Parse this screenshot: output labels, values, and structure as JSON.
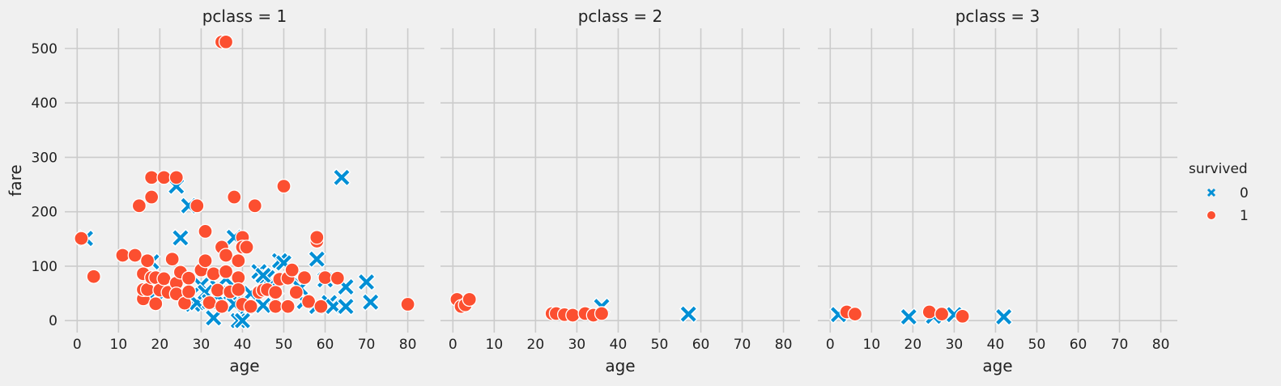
{
  "chart_data": {
    "type": "scatter",
    "xlabel": "age",
    "ylabel": "fare",
    "xlim": [
      -3,
      84
    ],
    "ylim": [
      -22,
      537
    ],
    "xticks": [
      0,
      10,
      20,
      30,
      40,
      50,
      60,
      70,
      80
    ],
    "yticks": [
      0,
      100,
      200,
      300,
      400,
      500
    ],
    "grid": true,
    "legend": {
      "title": "survived",
      "placement": "right",
      "entries": [
        {
          "label": "0",
          "marker": "x",
          "color": "#008fd5"
        },
        {
          "label": "1",
          "marker": "circle",
          "color": "#fc4f30"
        }
      ]
    },
    "panels": [
      {
        "title": "pclass = 1",
        "series": [
          {
            "label": "0",
            "points": [
              [
                2,
                151
              ],
              [
                18,
                108
              ],
              [
                19,
                53
              ],
              [
                24,
                247
              ],
              [
                25,
                152
              ],
              [
                27,
                211
              ],
              [
                28,
                30
              ],
              [
                29,
                33
              ],
              [
                30,
                65
              ],
              [
                31,
                52
              ],
              [
                32,
                35
              ],
              [
                33,
                5
              ],
              [
                34,
                61
              ],
              [
                36,
                77
              ],
              [
                37,
                50
              ],
              [
                38,
                153
              ],
              [
                39,
                0
              ],
              [
                40,
                0
              ],
              [
                41,
                26
              ],
              [
                42,
                50
              ],
              [
                44,
                90
              ],
              [
                45,
                28
              ],
              [
                46,
                79
              ],
              [
                47,
                60
              ],
              [
                49,
                110
              ],
              [
                50,
                106
              ],
              [
                52,
                80
              ],
              [
                54,
                60
              ],
              [
                55,
                35
              ],
              [
                58,
                113
              ],
              [
                58,
                26
              ],
              [
                60,
                75
              ],
              [
                61,
                33
              ],
              [
                62,
                26
              ],
              [
                64,
                263
              ],
              [
                65,
                26
              ],
              [
                65,
                62
              ],
              [
                70,
                71
              ],
              [
                71,
                34
              ],
              [
                45,
                83
              ],
              [
                34,
                45
              ],
              [
                38,
                30
              ],
              [
                48,
                40
              ]
            ]
          },
          {
            "label": "1",
            "points": [
              [
                1,
                151
              ],
              [
                4,
                81
              ],
              [
                11,
                120
              ],
              [
                14,
                120
              ],
              [
                15,
                211
              ],
              [
                16,
                40
              ],
              [
                16,
                57
              ],
              [
                16,
                86
              ],
              [
                17,
                110
              ],
              [
                17,
                57
              ],
              [
                18,
                263
              ],
              [
                18,
                227
              ],
              [
                18,
                79
              ],
              [
                19,
                31
              ],
              [
                19,
                79
              ],
              [
                20,
                56
              ],
              [
                21,
                263
              ],
              [
                21,
                77
              ],
              [
                22,
                52
              ],
              [
                23,
                113
              ],
              [
                24,
                263
              ],
              [
                24,
                69
              ],
              [
                24,
                49
              ],
              [
                25,
                89
              ],
              [
                26,
                32
              ],
              [
                27,
                78
              ],
              [
                27,
                53
              ],
              [
                29,
                211
              ],
              [
                30,
                93
              ],
              [
                31,
                164
              ],
              [
                31,
                110
              ],
              [
                32,
                33
              ],
              [
                33,
                86
              ],
              [
                34,
                56
              ],
              [
                35,
                512
              ],
              [
                35,
                135
              ],
              [
                35,
                26
              ],
              [
                36,
                512
              ],
              [
                36,
                120
              ],
              [
                36,
                90
              ],
              [
                37,
                53
              ],
              [
                38,
                227
              ],
              [
                39,
                79
              ],
              [
                39,
                110
              ],
              [
                39,
                57
              ],
              [
                40,
                153
              ],
              [
                40,
                135
              ],
              [
                40,
                30
              ],
              [
                41,
                135
              ],
              [
                42,
                26
              ],
              [
                43,
                211
              ],
              [
                44,
                52
              ],
              [
                45,
                56
              ],
              [
                46,
                57
              ],
              [
                48,
                26
              ],
              [
                48,
                52
              ],
              [
                49,
                76
              ],
              [
                50,
                247
              ],
              [
                51,
                26
              ],
              [
                51,
                78
              ],
              [
                52,
                93
              ],
              [
                53,
                52
              ],
              [
                55,
                79
              ],
              [
                56,
                35
              ],
              [
                58,
                146
              ],
              [
                58,
                153
              ],
              [
                59,
                26
              ],
              [
                60,
                79
              ],
              [
                63,
                78
              ],
              [
                80,
                30
              ]
            ]
          }
        ]
      },
      {
        "title": "pclass = 2",
        "series": [
          {
            "label": "0",
            "points": [
              [
                36,
                26
              ],
              [
                57,
                12
              ]
            ]
          },
          {
            "label": "1",
            "points": [
              [
                1,
                39
              ],
              [
                2,
                26
              ],
              [
                3,
                29
              ],
              [
                4,
                39
              ],
              [
                24,
                13
              ],
              [
                25,
                13
              ],
              [
                27,
                11
              ],
              [
                29,
                10
              ],
              [
                32,
                13
              ],
              [
                34,
                10
              ],
              [
                36,
                13
              ]
            ]
          }
        ]
      },
      {
        "title": "pclass = 3",
        "series": [
          {
            "label": "0",
            "points": [
              [
                2,
                11
              ],
              [
                19,
                7
              ],
              [
                25,
                8
              ],
              [
                30,
                11
              ],
              [
                42,
                7
              ]
            ]
          },
          {
            "label": "1",
            "points": [
              [
                4,
                16
              ],
              [
                6,
                12
              ],
              [
                24,
                16
              ],
              [
                27,
                12
              ],
              [
                32,
                8
              ]
            ]
          }
        ]
      }
    ]
  }
}
